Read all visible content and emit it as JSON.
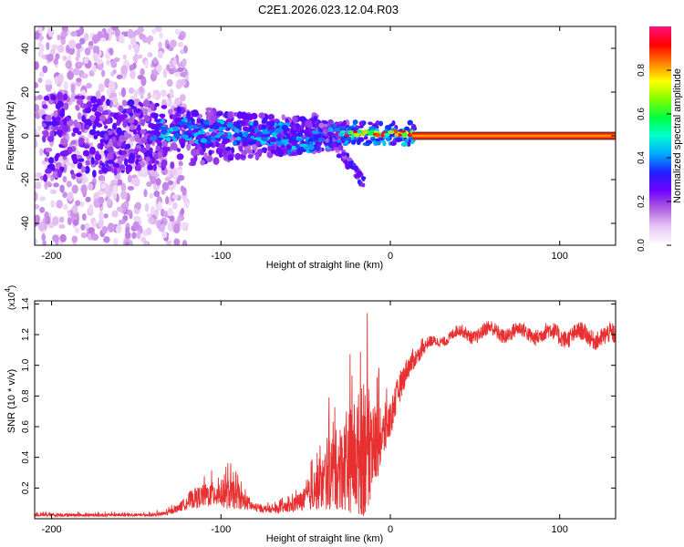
{
  "chart_data": [
    {
      "type": "heatmap",
      "title": "C2E1.2026.023.12.04.R03",
      "xlabel": "Height of straight line (km)",
      "ylabel": "Frequency (Hz)",
      "xlim": [
        -210,
        133
      ],
      "ylim": [
        -50,
        50
      ],
      "xticks": [
        -200,
        -100,
        0,
        100
      ],
      "yticks": [
        -40,
        -20,
        0,
        20,
        40
      ],
      "colorbar": {
        "label": "Normalized spectral amplitude",
        "range": [
          0,
          1
        ],
        "ticks": [
          "0.0",
          "0.2",
          "0.4",
          "0.6",
          "0.8"
        ],
        "tick_values": [
          0,
          0.2,
          0.4,
          0.6,
          0.8
        ],
        "colors": [
          "#ffffff",
          "#e8c8f4",
          "#b060e0",
          "#7000ff",
          "#2020ff",
          "#00aaff",
          "#00ffd0",
          "#00ff40",
          "#80ff00",
          "#ffff00",
          "#ff8000",
          "#ff0000",
          "#ff1080"
        ]
      },
      "signal_band": {
        "x_start": 15,
        "x_end": 133,
        "freq": 0
      }
    },
    {
      "type": "line",
      "xlabel": "Height of straight line (km)",
      "ylabel": "SNR (10 * v/v)",
      "exponent_label": "(x10",
      "exponent_power": "4",
      "exponent_close": ")",
      "xlim": [
        -210,
        133
      ],
      "ylim": [
        0,
        1.42
      ],
      "xticks": [
        -200,
        -100,
        0,
        100
      ],
      "yticks": [
        0.2,
        0.4,
        0.6,
        0.8,
        1.0,
        1.2,
        1.4
      ],
      "ytick_labels": [
        "0.2",
        "0.4",
        "0.6",
        "0.8",
        "1.0",
        "1.2",
        "1.4"
      ],
      "series_color": "#e83030",
      "series": [
        {
          "name": "SNR",
          "envelope": {
            "x": [
              -210,
              -140,
              -132,
              -125,
              -118,
              -110,
              -100,
              -95,
              -90,
              -80,
              -70,
              -60,
              -50,
              -40,
              -35,
              -30,
              -25,
              -20,
              -15,
              -10,
              -5,
              0,
              5,
              10,
              20,
              30,
              40,
              60,
              80,
              100,
              120,
              133
            ],
            "base": [
              0.02,
              0.02,
              0.03,
              0.06,
              0.1,
              0.12,
              0.13,
              0.12,
              0.11,
              0.06,
              0.05,
              0.06,
              0.1,
              0.16,
              0.2,
              0.22,
              0.24,
              0.25,
              0.28,
              0.35,
              0.45,
              0.6,
              0.8,
              0.95,
              1.1,
              1.18,
              1.2,
              1.22,
              1.21,
              1.2,
              1.19,
              1.18
            ],
            "spread": [
              0.02,
              0.02,
              0.03,
              0.05,
              0.12,
              0.15,
              0.18,
              0.2,
              0.15,
              0.05,
              0.04,
              0.08,
              0.15,
              0.35,
              0.5,
              0.55,
              0.65,
              0.8,
              0.9,
              0.6,
              0.35,
              0.25,
              0.2,
              0.15,
              0.08,
              0.06,
              0.08,
              0.1,
              0.1,
              0.12,
              0.12,
              0.14
            ]
          }
        }
      ]
    }
  ]
}
